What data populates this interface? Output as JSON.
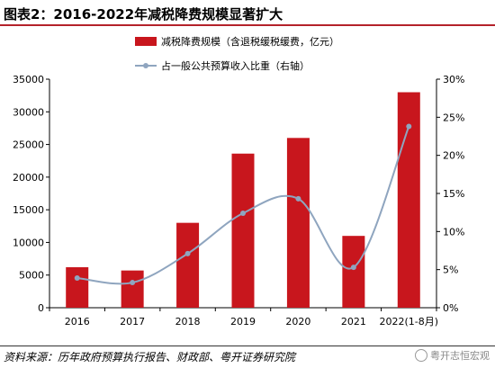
{
  "title": "图表2：2016-2022年减税降费规模显著扩大",
  "source": "资料来源：历年政府预算执行报告、财政部、粤开证券研究院",
  "watermark": "粤开志恒宏观",
  "colors": {
    "bar": "#c8161d",
    "line": "#8fa5bf",
    "title_rule": "#b4222a"
  },
  "chart_data": {
    "type": "bar",
    "categories": [
      "2016",
      "2017",
      "2018",
      "2019",
      "2020",
      "2021",
      "2022(1-8月)"
    ],
    "series": [
      {
        "name": "减税降费规模（含退税缓税缓费，亿元）",
        "type": "bar",
        "axis": "left",
        "values": [
          6200,
          5700,
          13000,
          23600,
          26000,
          11000,
          33000
        ]
      },
      {
        "name": "占一般公共预算收入比重（右轴）",
        "type": "line",
        "axis": "right",
        "smooth": true,
        "values": [
          0.039,
          0.033,
          0.071,
          0.124,
          0.143,
          0.053,
          0.238
        ]
      }
    ],
    "ylim": [
      0,
      35000
    ],
    "y_ticks": [
      0,
      5000,
      10000,
      15000,
      20000,
      25000,
      30000,
      35000
    ],
    "y2lim": [
      0,
      0.3
    ],
    "y2_ticks": [
      "0%",
      "5%",
      "10%",
      "15%",
      "20%",
      "25%",
      "30%"
    ],
    "legend_position": "top-center",
    "grid": false
  }
}
